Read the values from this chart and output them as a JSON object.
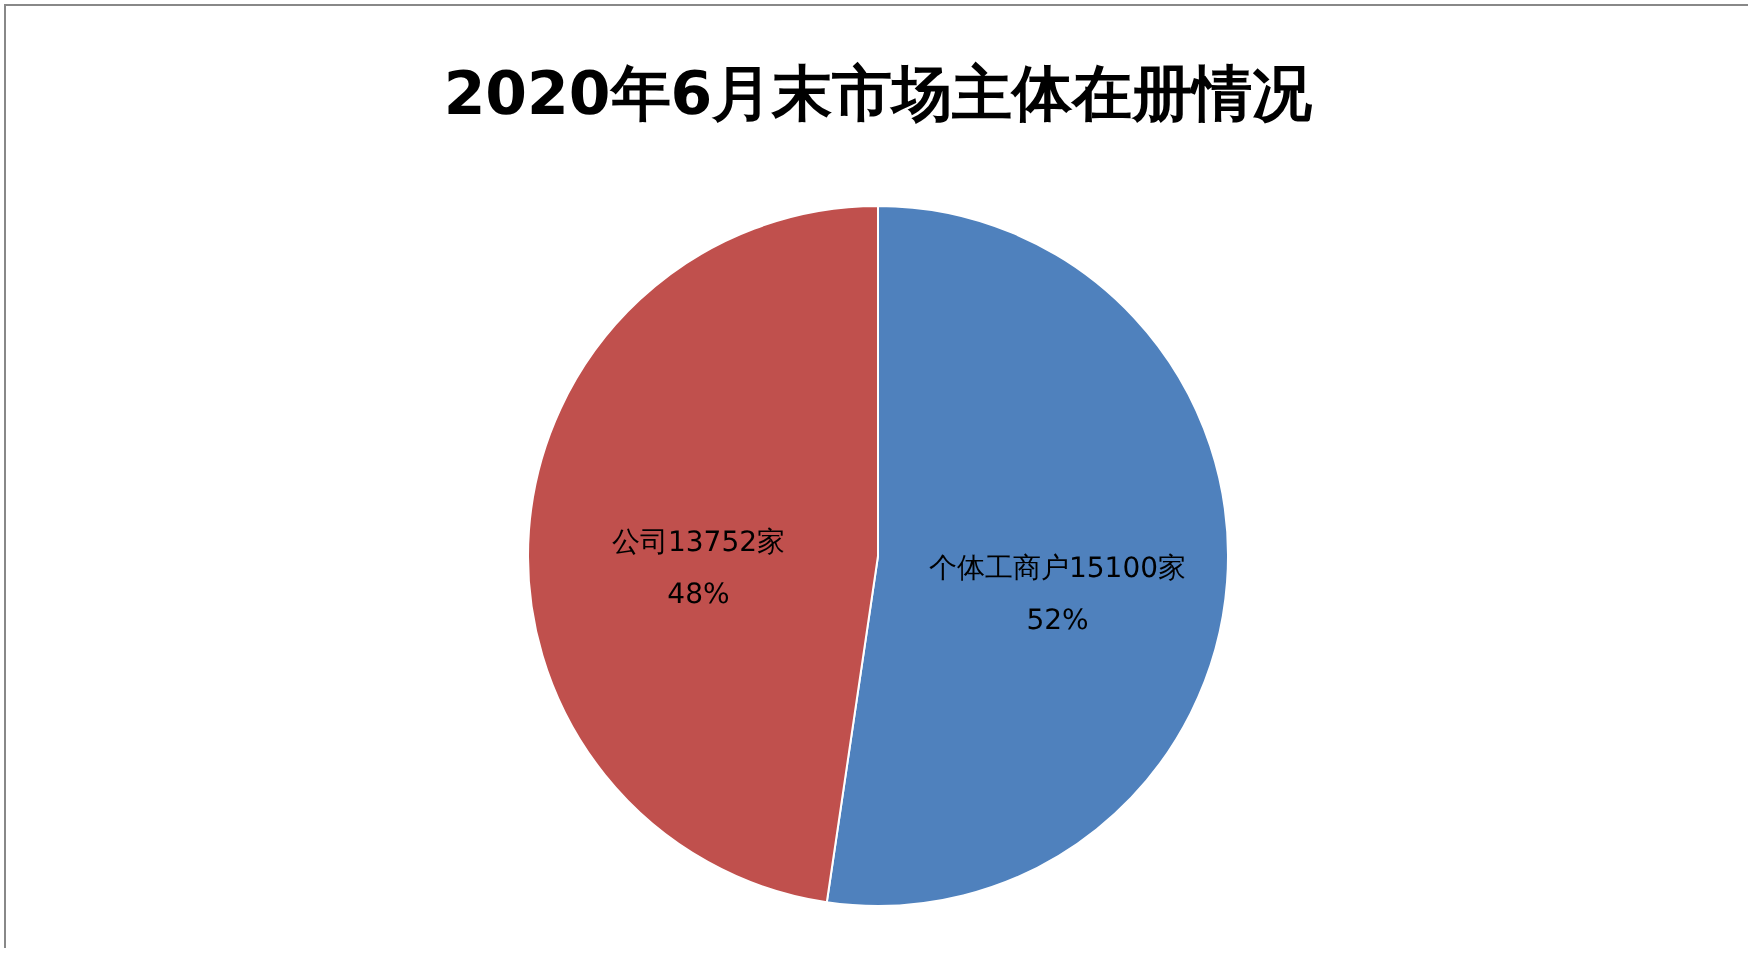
{
  "chart_data": {
    "type": "pie",
    "title": "2020年6月末市场主体在册情况",
    "categories": [
      "个体工商户",
      "公司"
    ],
    "values": [
      15100,
      13752
    ],
    "colors": [
      "#4f81bd",
      "#c0504d"
    ],
    "value_labels": [
      "15100家 52%",
      "13752家 48%"
    ]
  }
}
